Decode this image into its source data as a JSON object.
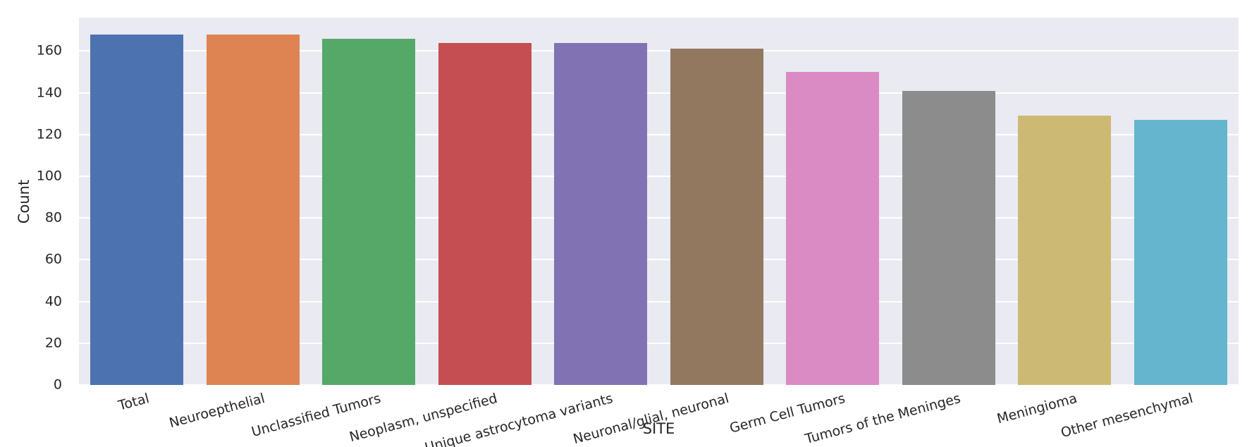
{
  "chart_data": {
    "type": "bar",
    "title": "",
    "xlabel": "SITE",
    "ylabel": "Count",
    "categories": [
      "Total",
      "Neuroepthelial",
      "Unclassified Tumors",
      "Neoplasm, unspecified",
      "Unique astrocytoma variants",
      "Neuronal/glial, neuronal",
      "Germ Cell Tumors",
      "Tumors of the Meninges",
      "Meningioma",
      "Other mesenchymal"
    ],
    "values": [
      168,
      168,
      166,
      164,
      164,
      161,
      150,
      141,
      129,
      127
    ],
    "bar_colors": [
      "#4C72B0",
      "#DD8452",
      "#55A868",
      "#C44E52",
      "#8172B3",
      "#937860",
      "#DA8BC3",
      "#8C8C8C",
      "#CCB974",
      "#64B5CD"
    ],
    "yticks": [
      0,
      20,
      40,
      60,
      80,
      100,
      120,
      140,
      160
    ],
    "ylim": [
      0,
      176
    ],
    "grid": true,
    "legend": "none",
    "plot_bg": "#EAEAF2",
    "grid_color": "#FFFFFF",
    "bar_width_fraction": 0.8
  }
}
